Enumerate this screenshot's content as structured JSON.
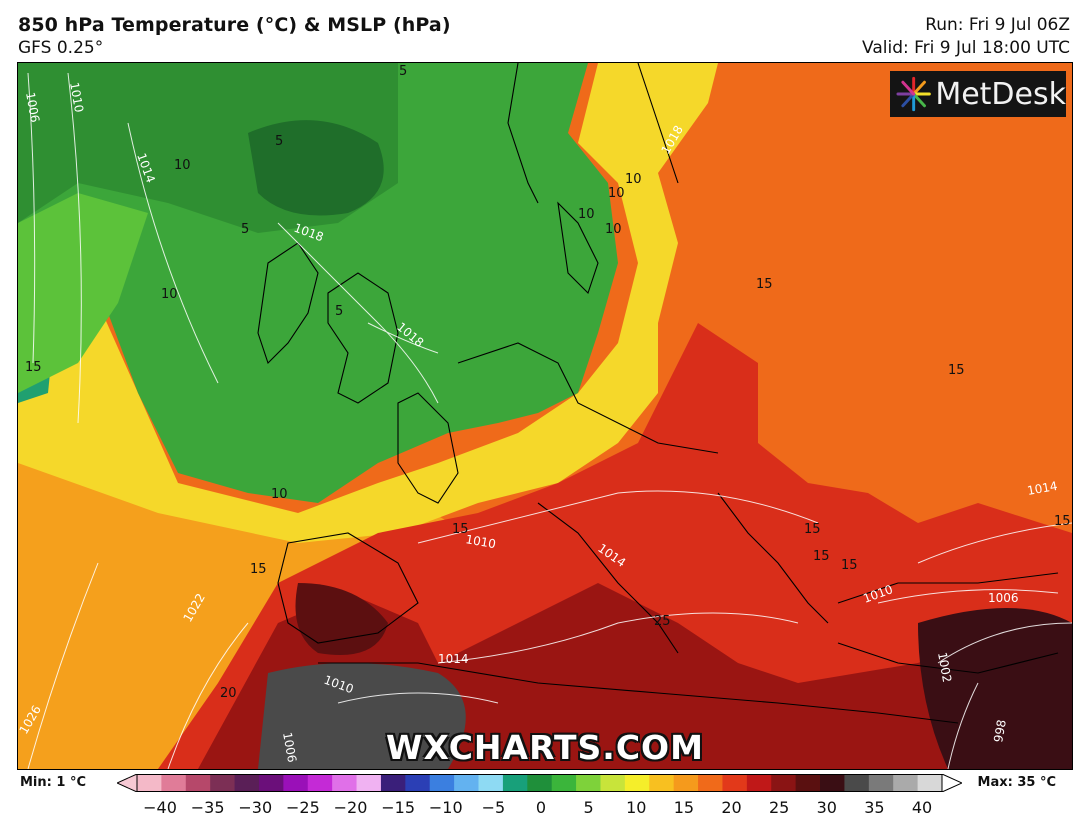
{
  "header": {
    "title": "850 hPa Temperature (°C) & MSLP (hPa)",
    "model": "GFS 0.25°",
    "run": "Run: Fri 9 Jul 06Z",
    "valid": "Valid: Fri 9 Jul 18:00 UTC"
  },
  "logo": {
    "text": "MetDesk",
    "icon": "metdesk-starburst-icon"
  },
  "watermark": "WXCHARTS.COM",
  "map": {
    "temperature_labels": [
      "5",
      "5",
      "5",
      "5",
      "10",
      "10",
      "10",
      "10",
      "10",
      "10",
      "10",
      "15",
      "15",
      "15",
      "15",
      "15",
      "15",
      "15",
      "15",
      "15",
      "20",
      "25"
    ],
    "isobar_labels": [
      "1006",
      "1010",
      "1014",
      "1018",
      "1018",
      "1014",
      "1010",
      "1022",
      "1026",
      "1014",
      "1014",
      "1010",
      "1006",
      "1002",
      "998",
      "1014",
      "1010",
      "1006",
      "1018"
    ]
  },
  "legend": {
    "min": "Min: 1 °C",
    "max": "Max: 35 °C",
    "ticks": [
      "−40",
      "−35",
      "−30",
      "−25",
      "−20",
      "−15",
      "−10",
      "−5",
      "0",
      "5",
      "10",
      "15",
      "20",
      "25",
      "30",
      "35",
      "40"
    ],
    "colors": [
      "#f4b9c8",
      "#e07c98",
      "#b6486a",
      "#7c2f55",
      "#5a1f57",
      "#6b0f7a",
      "#9a10b8",
      "#c42ad6",
      "#e070e8",
      "#f0b2f2",
      "#3a1f7a",
      "#2b3fb5",
      "#3b7fe0",
      "#63b2f0",
      "#8edaf3",
      "#18a07a",
      "#1f8f3a",
      "#3bb53b",
      "#7ed23a",
      "#c8e43a",
      "#f5ee2a",
      "#f8c020",
      "#f59a1c",
      "#f06a1a",
      "#e2391a",
      "#c01818",
      "#8a1414",
      "#5a1010",
      "#3a0e14",
      "#4a4a4a",
      "#7a7a7a",
      "#aaaaaa",
      "#d8d8d8"
    ]
  }
}
